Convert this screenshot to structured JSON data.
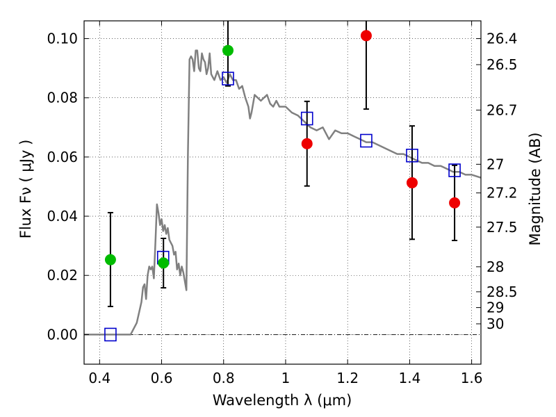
{
  "chart_data": {
    "type": "scatter",
    "xlabel": "Wavelength  λ (μm)",
    "ylabel": "Flux  Fν  ( μJy )",
    "y2label": "Magnitude (AB)",
    "xlim": [
      0.35,
      1.63
    ],
    "ylim": [
      -0.01,
      0.106
    ],
    "xticks": [
      0.4,
      0.6,
      0.8,
      1.0,
      1.2,
      1.4,
      1.6
    ],
    "xtick_labels": [
      "0.4",
      "0.6",
      "0.8",
      "1",
      "1.2",
      "1.4",
      "1.6"
    ],
    "yticks": [
      0.0,
      0.02,
      0.04,
      0.06,
      0.08,
      0.1
    ],
    "ytick_labels": [
      "0.00",
      "0.02",
      "0.04",
      "0.06",
      "0.08",
      "0.10"
    ],
    "mag_ticks": [
      26.4,
      26.5,
      26.7,
      27,
      27.2,
      27.5,
      28,
      28.5,
      29,
      30
    ],
    "mag_tick_labels": [
      "26.4",
      "26.5",
      "26.7",
      "27",
      "27.2",
      "27.5",
      "28",
      "28.5",
      "29",
      "30"
    ],
    "grid": true,
    "zero_line": true,
    "colors": {
      "template": "#808080",
      "model_flux": "#0000cc",
      "green_points": "#00bb00",
      "red_points": "#ee0000",
      "error_bars": "#000000"
    },
    "template_sed": {
      "x": [
        0.35,
        0.5,
        0.52,
        0.535,
        0.54,
        0.545,
        0.55,
        0.555,
        0.56,
        0.565,
        0.57,
        0.575,
        0.58,
        0.585,
        0.59,
        0.595,
        0.6,
        0.605,
        0.61,
        0.615,
        0.62,
        0.625,
        0.63,
        0.635,
        0.64,
        0.645,
        0.65,
        0.655,
        0.66,
        0.665,
        0.67,
        0.675,
        0.68,
        0.685,
        0.69,
        0.695,
        0.7,
        0.705,
        0.71,
        0.715,
        0.72,
        0.725,
        0.73,
        0.735,
        0.74,
        0.745,
        0.75,
        0.755,
        0.76,
        0.765,
        0.77,
        0.78,
        0.79,
        0.8,
        0.81,
        0.82,
        0.83,
        0.84,
        0.85,
        0.86,
        0.87,
        0.88,
        0.885,
        0.89,
        0.9,
        0.91,
        0.92,
        0.93,
        0.94,
        0.95,
        0.96,
        0.97,
        0.98,
        1.0,
        1.02,
        1.04,
        1.06,
        1.08,
        1.1,
        1.12,
        1.14,
        1.16,
        1.18,
        1.2,
        1.22,
        1.24,
        1.26,
        1.28,
        1.3,
        1.32,
        1.34,
        1.36,
        1.38,
        1.4,
        1.42,
        1.44,
        1.46,
        1.48,
        1.5,
        1.52,
        1.54,
        1.56,
        1.58,
        1.6,
        1.63
      ],
      "y": [
        0.0,
        0.0,
        0.004,
        0.011,
        0.016,
        0.017,
        0.012,
        0.02,
        0.023,
        0.022,
        0.023,
        0.019,
        0.031,
        0.044,
        0.041,
        0.037,
        0.039,
        0.035,
        0.037,
        0.034,
        0.036,
        0.032,
        0.031,
        0.03,
        0.027,
        0.028,
        0.022,
        0.024,
        0.02,
        0.023,
        0.021,
        0.018,
        0.015,
        0.061,
        0.093,
        0.094,
        0.093,
        0.089,
        0.096,
        0.096,
        0.09,
        0.089,
        0.095,
        0.093,
        0.092,
        0.088,
        0.09,
        0.095,
        0.088,
        0.087,
        0.086,
        0.089,
        0.086,
        0.087,
        0.085,
        0.088,
        0.086,
        0.086,
        0.083,
        0.084,
        0.08,
        0.077,
        0.073,
        0.075,
        0.081,
        0.08,
        0.079,
        0.08,
        0.081,
        0.078,
        0.077,
        0.079,
        0.077,
        0.077,
        0.075,
        0.074,
        0.072,
        0.07,
        0.069,
        0.07,
        0.066,
        0.069,
        0.068,
        0.068,
        0.067,
        0.066,
        0.065,
        0.065,
        0.064,
        0.063,
        0.062,
        0.061,
        0.061,
        0.06,
        0.059,
        0.058,
        0.058,
        0.057,
        0.057,
        0.056,
        0.055,
        0.055,
        0.054,
        0.054,
        0.053
      ]
    },
    "model_points": [
      {
        "x": 0.435,
        "y": 0.0
      },
      {
        "x": 0.605,
        "y": 0.026
      },
      {
        "x": 0.814,
        "y": 0.0865
      },
      {
        "x": 1.069,
        "y": 0.073
      },
      {
        "x": 1.26,
        "y": 0.0655
      },
      {
        "x": 1.408,
        "y": 0.0605
      },
      {
        "x": 1.545,
        "y": 0.0555
      }
    ],
    "observed_points": [
      {
        "x": 0.435,
        "y": 0.0253,
        "err_low": 0.0095,
        "err_high": 0.0412,
        "group": "green"
      },
      {
        "x": 0.606,
        "y": 0.0242,
        "err_low": 0.0158,
        "err_high": 0.0325,
        "group": "green"
      },
      {
        "x": 0.814,
        "y": 0.096,
        "err_low": 0.084,
        "err_high": 0.107,
        "group": "green"
      },
      {
        "x": 1.069,
        "y": 0.0645,
        "err_low": 0.0502,
        "err_high": 0.0788,
        "group": "red"
      },
      {
        "x": 1.26,
        "y": 0.101,
        "err_low": 0.0762,
        "err_high": 0.107,
        "group": "red"
      },
      {
        "x": 1.408,
        "y": 0.0513,
        "err_low": 0.0322,
        "err_high": 0.0705,
        "group": "red"
      },
      {
        "x": 1.545,
        "y": 0.0445,
        "err_low": 0.0318,
        "err_high": 0.0572,
        "group": "red"
      }
    ]
  }
}
